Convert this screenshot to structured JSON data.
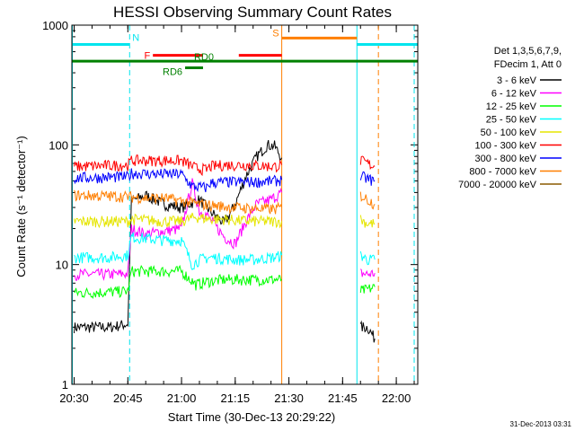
{
  "colors": {
    "background": "#ffffff",
    "axes": "#000000",
    "cyan_markers": "#00e5ee",
    "orange_markers": "#ff7f00"
  },
  "chart_data": {
    "type": "line",
    "title": "HESSI Observing Summary Count Rates",
    "xlabel": "Start Time (30-Dec-13 20:29:22)",
    "ylabel": "Count Rate (s⁻¹ detector⁻¹)",
    "timestamp": "31-Dec-2013 03:31",
    "y_scale": "log",
    "xlim": [
      "20:29:22",
      "22:06"
    ],
    "ylim": [
      1,
      1000
    ],
    "x_tick_labels": [
      "20:30",
      "20:45",
      "21:00",
      "21:15",
      "21:30",
      "21:45",
      "22:00"
    ],
    "y_tick_labels": [
      "1",
      "10",
      "100",
      "1000"
    ],
    "legend_title": [
      "Det 1,3,5,6,7,9,",
      "FDecim 1, Att 0"
    ],
    "legend_position": "right",
    "data_gaps": [
      [
        "21:28",
        "21:50"
      ]
    ],
    "series": [
      {
        "name": "3 - 6 keV",
        "color": "#000000",
        "points": [
          [
            "20:30",
            3
          ],
          [
            "20:40",
            3
          ],
          [
            "20:45",
            3.2
          ],
          [
            "20:46",
            34
          ],
          [
            "20:50",
            38
          ],
          [
            "20:55",
            32
          ],
          [
            "21:00",
            30
          ],
          [
            "21:05",
            35
          ],
          [
            "21:08",
            28
          ],
          [
            "21:12",
            22
          ],
          [
            "21:15",
            32
          ],
          [
            "21:18",
            55
          ],
          [
            "21:21",
            80
          ],
          [
            "21:24",
            100
          ],
          [
            "21:26",
            98
          ],
          [
            "21:28",
            78
          ],
          [
            "21:50",
            3
          ],
          [
            "21:52",
            3
          ],
          [
            "21:54",
            2.4
          ]
        ]
      },
      {
        "name": "6 - 12 keV",
        "color": "#ff00ff",
        "points": [
          [
            "20:30",
            8.3
          ],
          [
            "20:40",
            8.3
          ],
          [
            "20:45",
            8.4
          ],
          [
            "20:46",
            20
          ],
          [
            "20:50",
            18
          ],
          [
            "20:55",
            19
          ],
          [
            "21:00",
            20
          ],
          [
            "21:03",
            48
          ],
          [
            "21:05",
            28
          ],
          [
            "21:07",
            26
          ],
          [
            "21:12",
            17
          ],
          [
            "21:15",
            15
          ],
          [
            "21:18",
            23
          ],
          [
            "21:21",
            32
          ],
          [
            "21:25",
            35
          ],
          [
            "21:28",
            40
          ],
          [
            "21:50",
            8.5
          ],
          [
            "21:52",
            8.3
          ],
          [
            "21:54",
            8.5
          ]
        ]
      },
      {
        "name": "12 - 25 keV",
        "color": "#00ff00",
        "points": [
          [
            "20:30",
            5.8
          ],
          [
            "20:40",
            5.9
          ],
          [
            "20:45",
            6
          ],
          [
            "20:46",
            8.8
          ],
          [
            "20:55",
            8.8
          ],
          [
            "21:00",
            8.8
          ],
          [
            "21:04",
            6.8
          ],
          [
            "21:07",
            7.2
          ],
          [
            "21:12",
            7.5
          ],
          [
            "21:20",
            7.5
          ],
          [
            "21:26",
            7.5
          ],
          [
            "21:28",
            7.5
          ],
          [
            "21:50",
            6
          ],
          [
            "21:52",
            6.2
          ],
          [
            "21:54",
            6.5
          ]
        ]
      },
      {
        "name": "25 - 50 keV",
        "color": "#00ffff",
        "points": [
          [
            "20:30",
            11.5
          ],
          [
            "20:40",
            11.5
          ],
          [
            "20:45",
            12
          ],
          [
            "20:46",
            17
          ],
          [
            "20:55",
            16
          ],
          [
            "21:00",
            16
          ],
          [
            "21:03",
            10
          ],
          [
            "21:05",
            11
          ],
          [
            "21:08",
            11.5
          ],
          [
            "21:15",
            11
          ],
          [
            "21:20",
            11
          ],
          [
            "21:26",
            11.5
          ],
          [
            "21:28",
            12
          ],
          [
            "21:50",
            12
          ],
          [
            "21:52",
            11
          ],
          [
            "21:54",
            11
          ]
        ]
      },
      {
        "name": "50 - 100 keV",
        "color": "#e5e500",
        "points": [
          [
            "20:30",
            23
          ],
          [
            "20:45",
            23
          ],
          [
            "20:46",
            24
          ],
          [
            "20:55",
            23
          ],
          [
            "21:00",
            23
          ],
          [
            "21:02",
            24
          ],
          [
            "21:04",
            25
          ],
          [
            "21:08",
            24
          ],
          [
            "21:12",
            24
          ],
          [
            "21:15",
            23.5
          ],
          [
            "21:20",
            23
          ],
          [
            "21:26",
            23
          ],
          [
            "21:28",
            23
          ],
          [
            "21:50",
            24
          ],
          [
            "21:52",
            22
          ],
          [
            "21:54",
            22
          ]
        ]
      },
      {
        "name": "100 - 300 keV",
        "color": "#ff0000",
        "points": [
          [
            "20:30",
            66
          ],
          [
            "20:45",
            68
          ],
          [
            "20:46",
            74
          ],
          [
            "20:55",
            74
          ],
          [
            "21:00",
            74
          ],
          [
            "21:04",
            64
          ],
          [
            "21:07",
            62
          ],
          [
            "21:08",
            66
          ],
          [
            "21:12",
            68
          ],
          [
            "21:18",
            68
          ],
          [
            "21:26",
            66
          ],
          [
            "21:28",
            68
          ],
          [
            "21:50",
            74
          ],
          [
            "21:52",
            70
          ],
          [
            "21:54",
            66
          ]
        ]
      },
      {
        "name": "300 - 800 keV",
        "color": "#0000ff",
        "points": [
          [
            "20:30",
            53
          ],
          [
            "20:45",
            54
          ],
          [
            "20:46",
            58
          ],
          [
            "20:55",
            57
          ],
          [
            "21:00",
            57
          ],
          [
            "21:03",
            45
          ],
          [
            "21:07",
            44
          ],
          [
            "21:08",
            48
          ],
          [
            "21:12",
            49
          ],
          [
            "21:20",
            49
          ],
          [
            "21:26",
            50
          ],
          [
            "21:28",
            51
          ],
          [
            "21:50",
            55
          ],
          [
            "21:52",
            52
          ],
          [
            "21:54",
            50
          ]
        ]
      },
      {
        "name": "800 - 7000 keV",
        "color": "#ff7f00",
        "points": [
          [
            "20:30",
            38
          ],
          [
            "20:45",
            37
          ],
          [
            "20:50",
            36
          ],
          [
            "20:55",
            36
          ],
          [
            "21:00",
            34
          ],
          [
            "21:05",
            32
          ],
          [
            "21:10",
            31
          ],
          [
            "21:15",
            30
          ],
          [
            "21:20",
            29.5
          ],
          [
            "21:26",
            29
          ],
          [
            "21:28",
            30
          ],
          [
            "21:50",
            38
          ],
          [
            "21:52",
            35
          ],
          [
            "21:54",
            32
          ]
        ]
      },
      {
        "name": "7000 - 20000 keV",
        "color": "#8b5a00",
        "points": []
      }
    ],
    "flags": [
      {
        "label": "N",
        "color": "#00e5ee",
        "level": 690,
        "segments": [
          [
            "20:29:22",
            "20:45:30"
          ],
          [
            "21:49",
            "22:06"
          ]
        ]
      },
      {
        "label": "S",
        "color": "#ff7f00",
        "level": 780,
        "segments": [
          [
            "21:28",
            "21:49"
          ]
        ]
      },
      {
        "label": "F",
        "color": "#ff0000",
        "level": 560,
        "segments": [
          [
            "20:52",
            "21:06"
          ],
          [
            "21:16",
            "21:28"
          ]
        ]
      },
      {
        "label": "RD0",
        "color": "#008000",
        "level": 500,
        "segments": [
          [
            "20:29:22",
            "22:06"
          ]
        ]
      },
      {
        "label": "RD6",
        "color": "#008000",
        "level": 440,
        "segments": [
          [
            "21:01",
            "21:06"
          ]
        ]
      }
    ],
    "vertical_markers": [
      {
        "time": "20:29:30",
        "color": "#00e5ee",
        "style": "solid"
      },
      {
        "time": "20:45:30",
        "color": "#00e5ee",
        "style": "dashed"
      },
      {
        "time": "21:28",
        "color": "#ff7f00",
        "style": "solid"
      },
      {
        "time": "21:49",
        "color": "#00e5ee",
        "style": "solid"
      },
      {
        "time": "21:55",
        "color": "#ff7f00",
        "style": "dashed"
      },
      {
        "time": "22:05",
        "color": "#00e5ee",
        "style": "dashed"
      }
    ]
  }
}
